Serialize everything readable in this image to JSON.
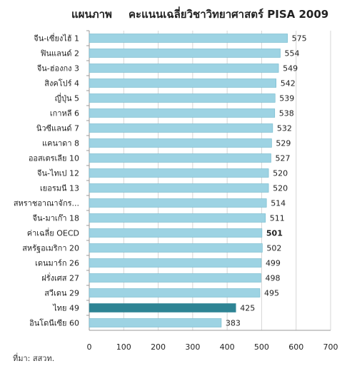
{
  "chart_data": {
    "type": "bar",
    "orientation": "horizontal",
    "title_lead": "แผนภาพ",
    "title": "คะแนนเฉลี่ยวิชาวิทยาศาสตร์ PISA 2009",
    "categories": [
      "จีน-เซี่ยงไฮ้ 1",
      "ฟินแลนด์ 2",
      "จีน-ฮ่องกง 3",
      "สิงคโปร์ 4",
      "ญี่ปุ่น 5",
      "เกาหลี 6",
      "นิวซีแลนด์ 7",
      "แคนาดา 8",
      "ออสเตรเลีย 10",
      "จีน-ไทเป 12",
      "เยอรมนี 13",
      "สหราชอาณาจักร...",
      "จีน-มาเก๊า 18",
      "ค่าเฉลี่ย OECD",
      "สหรัฐอเมริกา 20",
      "เดนมาร์ก 26",
      "ฝรั่งเศส 27",
      "สวีเดน 29",
      "ไทย 49",
      "อินโดนีเซีย 60"
    ],
    "values": [
      575,
      554,
      549,
      542,
      539,
      538,
      532,
      529,
      527,
      520,
      520,
      514,
      511,
      501,
      502,
      499,
      498,
      495,
      425,
      383
    ],
    "value_labels": [
      "575",
      "554",
      "549",
      "542",
      "539",
      "538",
      "532",
      "529",
      "527",
      "520",
      "520",
      "514",
      "511",
      "501",
      "502",
      "499",
      "498",
      "495",
      "425",
      "383"
    ],
    "highlight_index": 18,
    "bold_label_index": 13,
    "xlim": [
      0,
      700
    ],
    "xticks": [
      "0",
      "100",
      "200",
      "300",
      "400",
      "500",
      "600",
      "700"
    ],
    "grid": true,
    "colors": {
      "bar": "#9dd3e3",
      "bar_border": "#6fb7cc",
      "highlight": "#2e8494",
      "grid": "#d6d6d6",
      "axis": "#999999",
      "text": "#222222"
    }
  },
  "source_note": "ที่มา: สสวท."
}
